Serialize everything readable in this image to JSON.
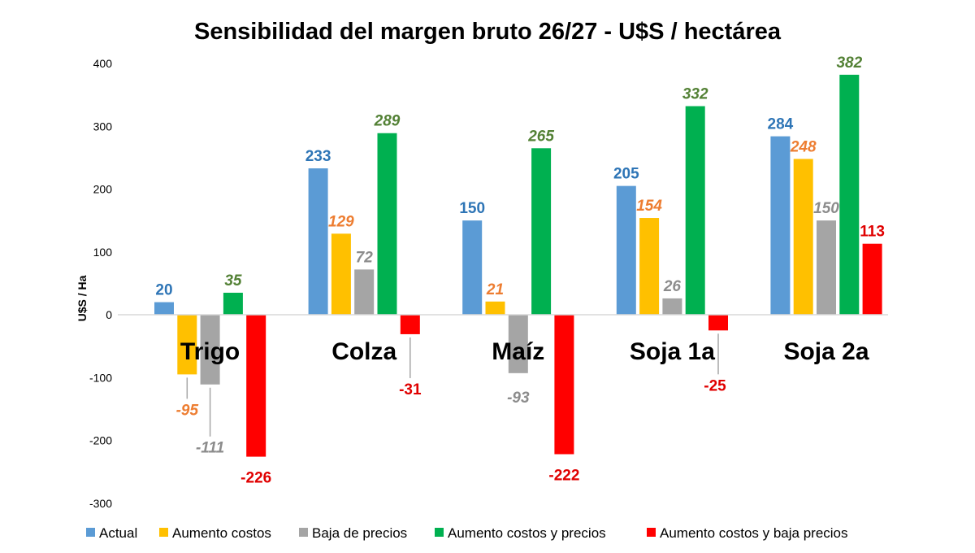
{
  "chart_data": {
    "type": "bar",
    "title": "Sensibilidad del margen bruto 26/27 - U$S / hectárea",
    "xlabel": "",
    "ylabel": "U$S / Ha",
    "ylim": [
      -300,
      400
    ],
    "yticks": [
      -300,
      -200,
      -100,
      0,
      100,
      200,
      300,
      400
    ],
    "grid": false,
    "legend_position": "bottom",
    "categories": [
      "Trigo",
      "Colza",
      "Maíz",
      "Soja 1a",
      "Soja 2a"
    ],
    "series": [
      {
        "name": "Actual",
        "color": "#5B9BD5",
        "label_color": "#2E75B6",
        "italic": false,
        "values": [
          20,
          233,
          150,
          205,
          284
        ]
      },
      {
        "name": "Aumento costos",
        "color": "#FFC000",
        "label_color": "#ED7D31",
        "italic": true,
        "values": [
          -95,
          129,
          21,
          154,
          248
        ]
      },
      {
        "name": "Baja de precios",
        "color": "#A5A5A5",
        "label_color": "#8C8C8C",
        "italic": true,
        "values": [
          -111,
          72,
          -93,
          26,
          150
        ]
      },
      {
        "name": "Aumento costos y precios",
        "color": "#00B050",
        "label_color": "#538135",
        "italic": true,
        "values": [
          35,
          289,
          265,
          332,
          382
        ]
      },
      {
        "name": "Aumento costos y baja precios",
        "color": "#FF0000",
        "label_color": "#E00000",
        "italic": false,
        "values": [
          -226,
          -31,
          -222,
          -25,
          113
        ]
      }
    ]
  }
}
